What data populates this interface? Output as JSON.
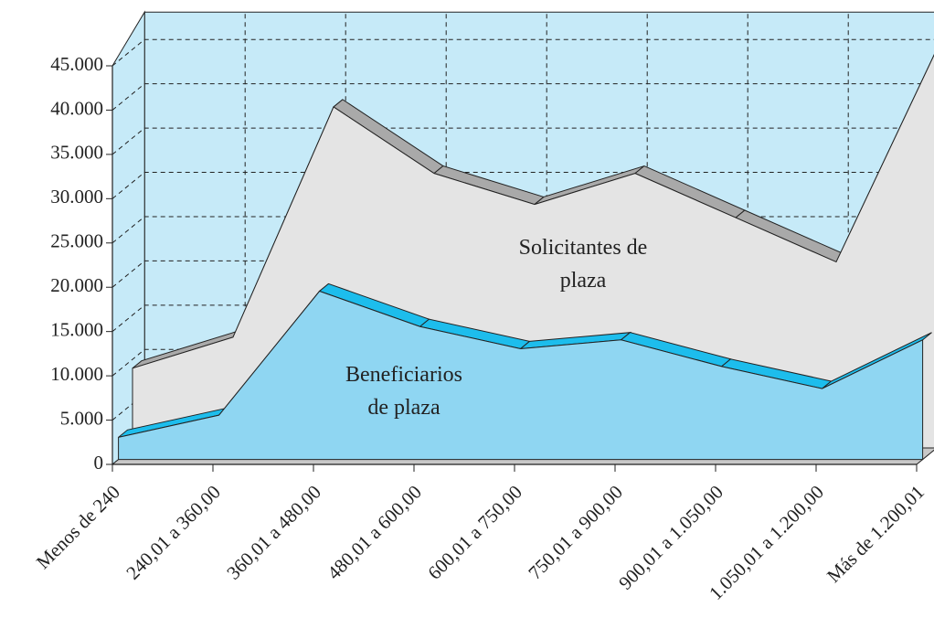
{
  "chart_data": {
    "type": "area3d",
    "categories": [
      "Menos de 240",
      "240,01 a 360,00",
      "360,01 a 480,00",
      "480,01 a 600,00",
      "600,01 a 750,00",
      "750,01 a 900,00",
      "900,01 a 1.050,00",
      "1.050,01 a 1.200,00",
      "Más de 1.200,01"
    ],
    "series": [
      {
        "name": "Beneficiarios de plaza",
        "color": "#8fd6f2",
        "edge_color": "#1dbdec",
        "values": [
          2500,
          5000,
          19000,
          15000,
          12500,
          13500,
          10500,
          8000,
          13500
        ]
      },
      {
        "name": "Solicitantes de plaza",
        "color": "#e4e4e4",
        "edge_color": "#a9a9a9",
        "values": [
          9000,
          12500,
          38500,
          31000,
          27500,
          31000,
          26000,
          21000,
          45000
        ]
      }
    ],
    "ylim": [
      0,
      45000
    ],
    "yticks": [
      0,
      {
        "value": 5000,
        "label": "5.000"
      },
      {
        "value": 10000,
        "label": "10.000"
      },
      {
        "value": 15000,
        "label": "15.000"
      },
      {
        "value": 20000,
        "label": "20.000"
      },
      {
        "value": 25000,
        "label": "25.000"
      },
      {
        "value": 30000,
        "label": "30.000"
      },
      {
        "value": 35000,
        "label": "35.000"
      },
      {
        "value": 40000,
        "label": "40.000"
      },
      {
        "value": 45000,
        "label": "45.000"
      }
    ],
    "grid": true,
    "wall_color": "#c6eaf8",
    "floor_color": "#c8c8c8"
  }
}
